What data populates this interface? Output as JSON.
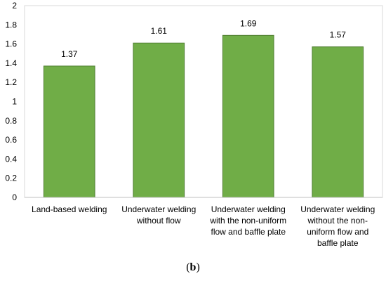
{
  "caption": {
    "open": "(",
    "letter": "b",
    "close": ")"
  },
  "colors": {
    "bar_fill": "#70ad47",
    "bar_stroke": "#507e32",
    "plot_border": "#d9d9d9"
  },
  "chart_data": {
    "type": "bar",
    "categories": [
      [
        "Land-based welding"
      ],
      [
        "Underwater welding",
        "without flow"
      ],
      [
        "Underwater welding",
        "with the non-uniform",
        "flow and baffle plate"
      ],
      [
        "Underwater welding",
        "without the non-",
        "uniform flow and",
        "baffle plate"
      ]
    ],
    "values": [
      1.37,
      1.61,
      1.69,
      1.57
    ],
    "data_labels": [
      "1.37",
      "1.61",
      "1.69",
      "1.57"
    ],
    "title": "",
    "xlabel": "",
    "ylabel": "",
    "ylim": [
      0,
      2
    ],
    "yticks": [
      "0",
      "0.2",
      "0.4",
      "0.6",
      "0.8",
      "1",
      "1.2",
      "1.4",
      "1.6",
      "1.8",
      "2"
    ],
    "grid": false,
    "legend": "none"
  }
}
